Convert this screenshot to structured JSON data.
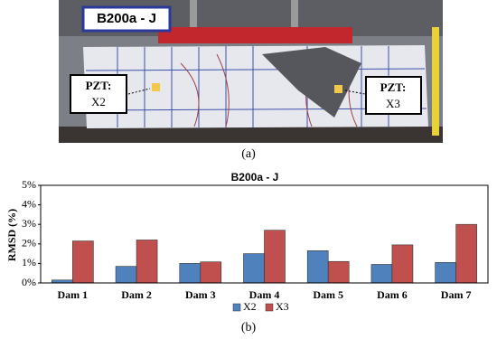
{
  "figure_a": {
    "specimen_label": "B200a - J",
    "left_sensor": {
      "title": "PZT:",
      "name": "X2"
    },
    "right_sensor": {
      "title": "PZT:",
      "name": "X3"
    },
    "caption": "(a)"
  },
  "chart_data": {
    "type": "bar",
    "title": "B200a - J",
    "y_label": "RMSD (%)",
    "categories": [
      "Dam 1",
      "Dam 2",
      "Dam 3",
      "Dam 4",
      "Dam 5",
      "Dam 6",
      "Dam 7"
    ],
    "series": [
      {
        "name": "X2",
        "color": "#4f81bd",
        "values": [
          0.15,
          0.85,
          1.0,
          1.5,
          1.65,
          0.95,
          1.05
        ]
      },
      {
        "name": "X3",
        "color": "#c0504d",
        "values": [
          2.15,
          2.2,
          1.08,
          2.7,
          1.1,
          1.95,
          3.0
        ]
      }
    ],
    "ylim": [
      0,
      5
    ],
    "yticks": [
      {
        "value": 0,
        "label": "0%"
      },
      {
        "value": 1,
        "label": "1%"
      },
      {
        "value": 2,
        "label": "2%"
      },
      {
        "value": 3,
        "label": "3%"
      },
      {
        "value": 4,
        "label": "4%"
      },
      {
        "value": 5,
        "label": "5%"
      }
    ],
    "grid": false,
    "legend": "bottom"
  },
  "caption_b": "(b)"
}
